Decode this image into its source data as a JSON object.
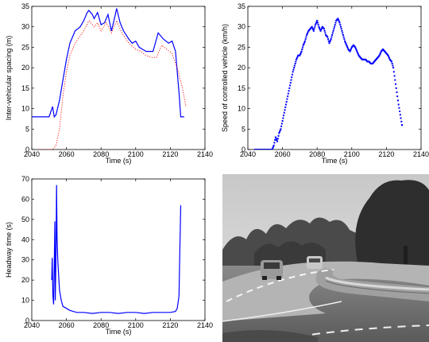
{
  "chart_data": [
    {
      "type": "line",
      "xlabel": "Time (s)",
      "ylabel": "Inter-vehicular spacing (m)",
      "xlim": [
        2040,
        2140
      ],
      "ylim": [
        0,
        35
      ],
      "xticks": [
        "2040",
        "2060",
        "2080",
        "2100",
        "2120",
        "2140"
      ],
      "yticks": [
        "0",
        "5",
        "10",
        "15",
        "20",
        "25",
        "30",
        "35"
      ],
      "grid": false,
      "series": [
        {
          "style": "solid",
          "color": "#0000ff",
          "x": [
            2040,
            2050,
            2052,
            2053,
            2054,
            2056,
            2058,
            2060,
            2062,
            2065,
            2068,
            2070,
            2072,
            2073,
            2075,
            2076,
            2078,
            2080,
            2082,
            2084,
            2086,
            2088,
            2089,
            2091,
            2093,
            2096,
            2098,
            2100,
            2102,
            2104,
            2106,
            2108,
            2110,
            2113,
            2116,
            2119,
            2121,
            2123,
            2125,
            2126,
            2128
          ],
          "y": [
            8,
            8,
            10.5,
            8,
            8.5,
            12,
            17,
            22,
            26,
            29,
            30,
            31.5,
            33.5,
            34,
            33,
            32,
            33.5,
            30.5,
            31,
            33,
            29,
            32.5,
            34.5,
            31,
            29,
            27,
            26,
            26.5,
            25,
            24.5,
            24,
            24,
            24,
            28.5,
            27,
            26,
            26.5,
            24,
            14,
            8,
            8
          ]
        },
        {
          "style": "dotted",
          "color": "#ff0000",
          "x": [
            2044,
            2052,
            2054,
            2056,
            2058,
            2060,
            2062,
            2065,
            2070,
            2073,
            2076,
            2078,
            2080,
            2083,
            2086,
            2089,
            2092,
            2096,
            2100,
            2103,
            2106,
            2109,
            2112,
            2115,
            2118,
            2121,
            2124,
            2127,
            2129
          ],
          "y": [
            0,
            0,
            1,
            5,
            13,
            19,
            23,
            26,
            29,
            31.5,
            30,
            31,
            29,
            31,
            28.5,
            31.5,
            28.5,
            26,
            24.5,
            24,
            23,
            22.5,
            22.5,
            25.5,
            24.5,
            23.5,
            20,
            15,
            10.5
          ]
        }
      ]
    },
    {
      "type": "scatter",
      "xlabel": "Time (s)",
      "ylabel": "Speed of controlled vehicle (km/h)",
      "xlim": [
        2040,
        2140
      ],
      "ylim": [
        0,
        35
      ],
      "xticks": [
        "2040",
        "2060",
        "2080",
        "2100",
        "2120",
        "2140"
      ],
      "yticks": [
        "0",
        "5",
        "10",
        "15",
        "20",
        "25",
        "30",
        "35"
      ],
      "grid": false,
      "series": [
        {
          "style": "dots",
          "color": "#0000ff",
          "x": [
            2044,
            2046,
            2048,
            2050,
            2052,
            2054,
            2055,
            2056,
            2057,
            2058,
            2059,
            2060,
            2061,
            2062,
            2063,
            2064,
            2065,
            2066,
            2067,
            2068,
            2069,
            2070,
            2071,
            2072,
            2073,
            2074,
            2075,
            2076,
            2077,
            2078,
            2079,
            2080,
            2081,
            2082,
            2083,
            2084,
            2085,
            2086,
            2087,
            2088,
            2089,
            2090,
            2091,
            2092,
            2093,
            2094,
            2095,
            2096,
            2097,
            2098,
            2099,
            2100,
            2101,
            2102,
            2103,
            2104,
            2105,
            2106,
            2107,
            2108,
            2109,
            2110,
            2111,
            2112,
            2113,
            2114,
            2115,
            2116,
            2117,
            2118,
            2119,
            2120,
            2121,
            2122,
            2123,
            2124,
            2125,
            2126,
            2127,
            2128,
            2129
          ],
          "y": [
            0,
            0,
            0,
            0,
            0,
            0,
            1,
            3,
            2,
            4,
            5,
            7,
            9,
            11,
            13,
            15,
            17,
            19,
            20.5,
            22,
            23,
            23,
            24,
            25.5,
            26.5,
            28,
            29,
            29.5,
            30,
            29,
            30.5,
            31.5,
            30,
            29,
            30,
            29.5,
            28,
            27.5,
            26,
            27,
            28.5,
            30,
            31.5,
            32,
            31,
            29.5,
            28,
            26.5,
            25.5,
            24.5,
            24,
            25,
            25.5,
            25,
            24,
            23,
            22.5,
            22,
            22,
            22,
            21.5,
            21.5,
            21,
            21,
            21.5,
            22,
            22.5,
            23,
            24,
            24.5,
            24,
            23.5,
            23,
            22,
            21.5,
            20,
            17,
            14,
            11,
            8.5,
            6
          ]
        }
      ]
    },
    {
      "type": "line",
      "xlabel": "Time (s)",
      "ylabel": "Headway time (s)",
      "xlim": [
        2040,
        2140
      ],
      "ylim": [
        0,
        70
      ],
      "xticks": [
        "2040",
        "2060",
        "2080",
        "2100",
        "2120",
        "2140"
      ],
      "yticks": [
        "0",
        "10",
        "20",
        "30",
        "40",
        "50",
        "60",
        "70"
      ],
      "grid": false,
      "series": [
        {
          "style": "solid",
          "color": "#0000ff",
          "x": [
            2051.5,
            2051.8,
            2052.2,
            2052.6,
            2053,
            2053.3,
            2053.6,
            2054,
            2054.3,
            2054.6,
            2055,
            2056,
            2057,
            2058,
            2060,
            2062,
            2064,
            2066,
            2070,
            2075,
            2080,
            2085,
            2090,
            2095,
            2100,
            2105,
            2110,
            2115,
            2120,
            2123,
            2124,
            2125,
            2125.5,
            2126
          ],
          "y": [
            20,
            31,
            12,
            8,
            28,
            49,
            10,
            33,
            67,
            42,
            30,
            15,
            10,
            7,
            6,
            5,
            4.5,
            4,
            4,
            3.5,
            4,
            4,
            3.5,
            4,
            4,
            3.5,
            4,
            4,
            4,
            4.5,
            6,
            12,
            35,
            57
          ]
        }
      ]
    }
  ],
  "photo": {
    "description_color_sky": "#dcdcdc"
  }
}
